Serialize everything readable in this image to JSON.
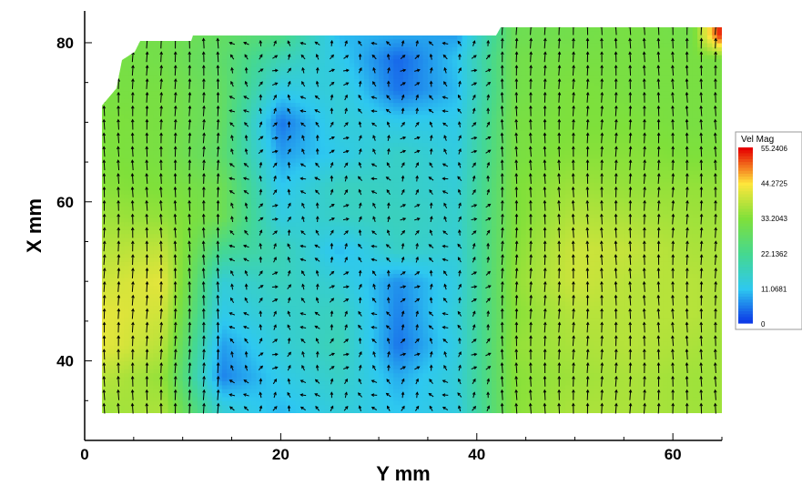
{
  "chart_data": {
    "type": "heatmap",
    "subtype": "contour-with-vector-field",
    "xlabel": "Y mm",
    "ylabel": "X mm",
    "xlim": [
      0,
      65
    ],
    "ylim": [
      30,
      84
    ],
    "xticks": [
      0,
      20,
      40,
      60
    ],
    "yticks": [
      40,
      60,
      80
    ],
    "grid": false,
    "legend": {
      "title": "Vel Mag",
      "placement": "right",
      "levels": [
        "55.2406",
        "44.2725",
        "33.2043",
        "22.1362",
        "11.0681",
        "0"
      ],
      "colors": [
        "#e60000",
        "#ffe63c",
        "#7fe03a",
        "#45d890",
        "#2ec8f0",
        "#0a2ee6"
      ]
    },
    "field": {
      "quantity": "Vel Mag",
      "x": [
        2,
        8,
        14,
        20,
        26,
        32,
        38,
        44,
        50,
        56,
        62,
        65
      ],
      "y": [
        34,
        38,
        42,
        46,
        50,
        54,
        58,
        62,
        66,
        70,
        74,
        78,
        81
      ],
      "values": [
        [
          36,
          37,
          14,
          10,
          14,
          11,
          13,
          34,
          37,
          37,
          36,
          36
        ],
        [
          38,
          35,
          6,
          12,
          16,
          9,
          14,
          34,
          36,
          37,
          36,
          36
        ],
        [
          42,
          38,
          8,
          14,
          18,
          5,
          13,
          35,
          37,
          38,
          37,
          36
        ],
        [
          42,
          40,
          12,
          15,
          17,
          6,
          14,
          34,
          38,
          38,
          38,
          37
        ],
        [
          40,
          42,
          14,
          17,
          14,
          7,
          13,
          35,
          40,
          38,
          38,
          37
        ],
        [
          38,
          39,
          22,
          18,
          10,
          16,
          14,
          34,
          40,
          39,
          37,
          37
        ],
        [
          36,
          35,
          30,
          13,
          16,
          17,
          15,
          33,
          38,
          37,
          36,
          36
        ],
        [
          34,
          33,
          30,
          11,
          17,
          16,
          14,
          33,
          36,
          35,
          35,
          35
        ],
        [
          33,
          32,
          27,
          8,
          12,
          16,
          13,
          32,
          34,
          34,
          33,
          33
        ],
        [
          33,
          32,
          28,
          5,
          14,
          12,
          12,
          32,
          33,
          33,
          32,
          32
        ],
        [
          32,
          32,
          28,
          12,
          14,
          5,
          10,
          31,
          33,
          32,
          32,
          32
        ],
        [
          32,
          31,
          27,
          18,
          12,
          4,
          11,
          31,
          32,
          32,
          32,
          32
        ],
        [
          31,
          31,
          28,
          24,
          10,
          9,
          8,
          30,
          31,
          32,
          31,
          55
        ]
      ]
    }
  }
}
